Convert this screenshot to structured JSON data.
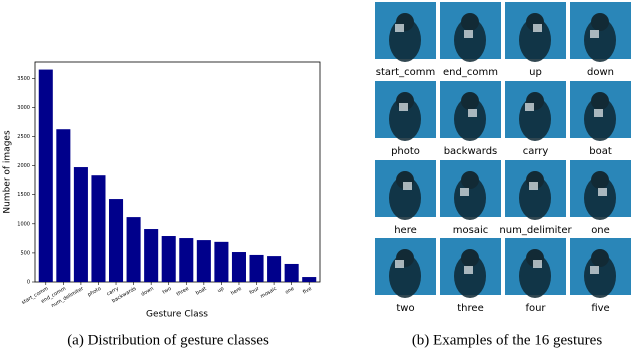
{
  "chart_data": {
    "type": "bar",
    "xlabel": "Gesture Class",
    "ylabel": "Number of images",
    "categories": [
      "start_comm",
      "end_comm",
      "num_delimiter",
      "photo",
      "carry",
      "backwards",
      "down",
      "two",
      "three",
      "boat",
      "up",
      "here",
      "four",
      "mosaic",
      "one",
      "five"
    ],
    "values": [
      3650,
      2625,
      1975,
      1835,
      1425,
      1115,
      910,
      790,
      755,
      720,
      690,
      515,
      465,
      445,
      310,
      85
    ],
    "color": "#00008b",
    "ylim": [
      0,
      3780
    ],
    "yticks": [
      0,
      500,
      1000,
      1500,
      2000,
      2500,
      3000,
      3500
    ],
    "grid": false
  },
  "captions": [
    "(a) Distribution of gesture classes",
    "(b) Examples of the 16 gestures"
  ],
  "gallery": {
    "labels": [
      "start_comm",
      "end_comm",
      "up",
      "down",
      "photo",
      "backwards",
      "carry",
      "boat",
      "here",
      "mosaic",
      "num_delimiter",
      "one",
      "two",
      "three",
      "four",
      "five"
    ]
  }
}
